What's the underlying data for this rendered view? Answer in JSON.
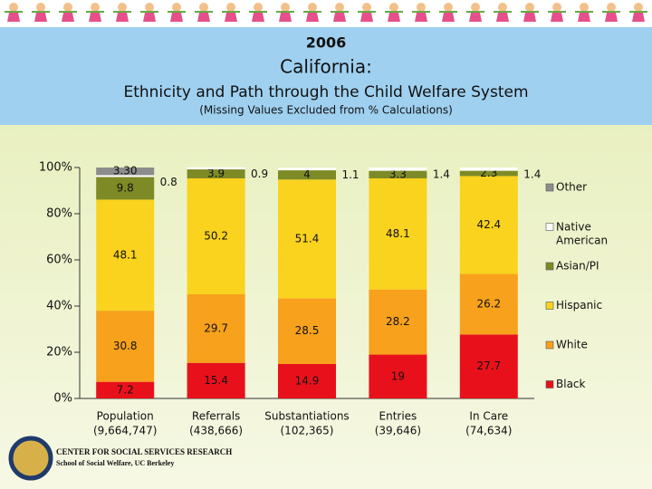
{
  "header": {
    "year": "2006",
    "state": "California:",
    "title": "Ethnicity and Path through the Child Welfare System",
    "subtitle": "(Missing Values Excluded from % Calculations)"
  },
  "chart_data": {
    "type": "stacked_bar",
    "categories": [
      "Population",
      "Referrals",
      "Substantiations",
      "Entries",
      "In Care"
    ],
    "category_counts": [
      "(9,664,747)",
      "(438,666)",
      "(102,365)",
      "(39,646)",
      "(74,634)"
    ],
    "series": [
      {
        "name": "Black",
        "color": "#e8111b",
        "values": [
          7.2,
          15.4,
          14.9,
          19.0,
          27.7
        ]
      },
      {
        "name": "White",
        "color": "#f7a11c",
        "values": [
          30.8,
          29.7,
          28.5,
          28.2,
          26.2
        ]
      },
      {
        "name": "Hispanic",
        "color": "#f9d31d",
        "values": [
          48.1,
          50.2,
          51.4,
          48.1,
          42.4
        ]
      },
      {
        "name": "Asian/PI",
        "color": "#7e8a26",
        "values": [
          9.8,
          3.9,
          4.0,
          3.3,
          2.3
        ]
      },
      {
        "name": "Native American",
        "color": "#ffffff",
        "values": [
          0.8,
          0.9,
          1.1,
          1.4,
          1.4
        ]
      },
      {
        "name": "Other",
        "color": "#8c8c8c",
        "values": [
          3.3,
          null,
          null,
          null,
          null
        ],
        "value_labels": [
          "3.30",
          null,
          null,
          null,
          null
        ]
      }
    ],
    "ylim": [
      0,
      100
    ],
    "yticks": [
      {
        "value": 0,
        "label": "0%"
      },
      {
        "value": 20,
        "label": "20%"
      },
      {
        "value": 40,
        "label": "40%"
      },
      {
        "value": 60,
        "label": "60%"
      },
      {
        "value": 80,
        "label": "80%"
      },
      {
        "value": 100,
        "label": "100%"
      }
    ]
  },
  "footer": {
    "org": "CENTER FOR SOCIAL SERVICES RESEARCH",
    "school": "School of Social Welfare, UC Berkeley"
  }
}
